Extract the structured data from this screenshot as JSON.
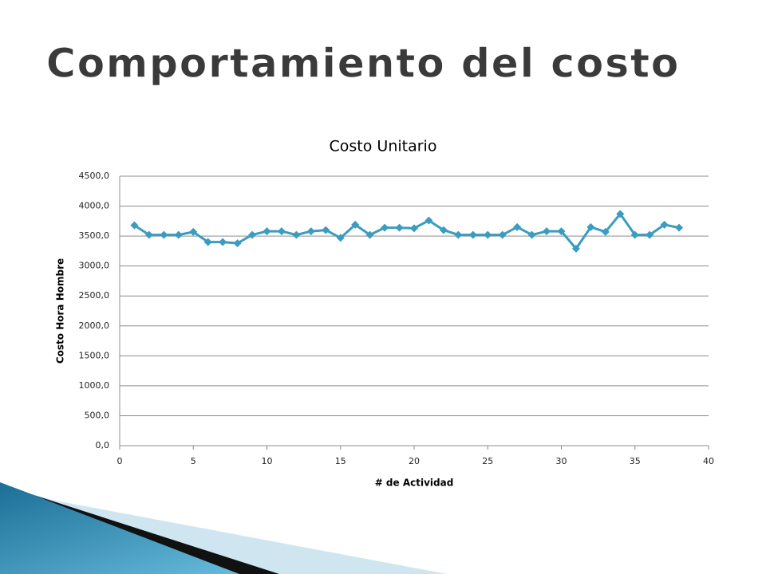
{
  "slide": {
    "title": "Comportamiento del costo"
  },
  "chart_data": {
    "type": "line",
    "title": "Costo Unitario",
    "x_label": "# de Actividad",
    "y_label": "Costo Hora Hombre",
    "series": [
      {
        "name": "Costo Unitario",
        "color": "#3a9cc0",
        "x": [
          1,
          2,
          3,
          4,
          5,
          6,
          7,
          8,
          9,
          10,
          11,
          12,
          13,
          14,
          15,
          16,
          17,
          18,
          19,
          20,
          21,
          22,
          23,
          24,
          25,
          26,
          27,
          28,
          29,
          30,
          31,
          32,
          33,
          34,
          35,
          36,
          37,
          38
        ],
        "values": [
          3680,
          3520,
          3520,
          3520,
          3570,
          3400,
          3400,
          3380,
          3520,
          3580,
          3580,
          3520,
          3580,
          3600,
          3470,
          3690,
          3520,
          3640,
          3640,
          3630,
          3760,
          3600,
          3520,
          3520,
          3520,
          3520,
          3650,
          3520,
          3580,
          3580,
          3290,
          3650,
          3570,
          3870,
          3520,
          3520,
          3690,
          3640
        ]
      }
    ],
    "xlim": [
      0,
      40
    ],
    "xticks": [
      0,
      5,
      10,
      15,
      20,
      25,
      30,
      35,
      40
    ],
    "ylim": [
      0,
      4500
    ],
    "yticks": [
      {
        "value": 0,
        "label": "0,0"
      },
      {
        "value": 500,
        "label": "500,0"
      },
      {
        "value": 1000,
        "label": "1000,0"
      },
      {
        "value": 1500,
        "label": "1500,0"
      },
      {
        "value": 2000,
        "label": "2000,0"
      },
      {
        "value": 2500,
        "label": "2500,0"
      },
      {
        "value": 3000,
        "label": "3000,0"
      },
      {
        "value": 3500,
        "label": "3500,0"
      },
      {
        "value": 4000,
        "label": "4000,0"
      },
      {
        "value": 4500,
        "label": "4500,0"
      }
    ],
    "grid": true
  }
}
